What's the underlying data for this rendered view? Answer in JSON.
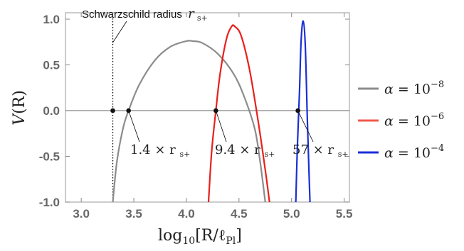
{
  "chart_data": {
    "type": "line",
    "xlabel": "log₁₀[R/ℓ_Pl]",
    "ylabel": "V(R)",
    "xlim": [
      2.85,
      5.55
    ],
    "ylim": [
      -1.0,
      1.07
    ],
    "xticks": [
      "3.0",
      "3.5",
      "4.0",
      "4.5",
      "5.0",
      "5.5"
    ],
    "xtick_values": [
      3.0,
      3.5,
      4.0,
      4.5,
      5.0,
      5.5
    ],
    "yticks": [
      "1.0",
      "0.5",
      "0.0",
      "-0.5",
      "-1.0"
    ],
    "ytick_values": [
      1.0,
      0.5,
      0.0,
      -0.5,
      -1.0
    ],
    "legend_position": "right",
    "series": [
      {
        "name": "α = 10⁻⁸",
        "color": "#8c8c8c",
        "x": [
          3.3,
          3.34,
          3.4,
          3.45,
          3.55,
          3.7,
          3.85,
          4.0,
          4.06,
          4.15,
          4.3,
          4.45,
          4.55,
          4.65,
          4.7,
          4.75
        ],
        "y": [
          -1.0,
          -0.55,
          -0.18,
          0.0,
          0.28,
          0.55,
          0.7,
          0.76,
          0.76,
          0.74,
          0.62,
          0.4,
          0.15,
          -0.2,
          -0.55,
          -1.0
        ]
      },
      {
        "name": "α = 10⁻⁶",
        "color": "#e8201c",
        "x": [
          4.21,
          4.24,
          4.28,
          4.32,
          4.38,
          4.43,
          4.46,
          4.52,
          4.6,
          4.68,
          4.75,
          4.79
        ],
        "y": [
          -1.0,
          -0.45,
          0.0,
          0.4,
          0.78,
          0.92,
          0.92,
          0.82,
          0.45,
          -0.1,
          -0.65,
          -1.0
        ]
      },
      {
        "name": "α = 10⁻⁴",
        "color": "#1a2fd6",
        "x": [
          5.04,
          5.055,
          5.075,
          5.09,
          5.11,
          5.13,
          5.15,
          5.165,
          5.175
        ],
        "y": [
          -1.0,
          -0.4,
          0.2,
          0.75,
          0.98,
          0.72,
          -0.1,
          -0.65,
          -1.0
        ]
      }
    ],
    "markers": [
      {
        "x": 3.3,
        "y": 0.0
      },
      {
        "x": 3.45,
        "y": 0.0
      },
      {
        "x": 4.28,
        "y": 0.0
      },
      {
        "x": 5.06,
        "y": 0.0
      }
    ],
    "vertical_line": {
      "x": 3.3,
      "style": "dotted"
    },
    "annotations": {
      "schwarzschild": {
        "text": "Schwarzschild radius",
        "symbol": "r",
        "subscript": "s+"
      },
      "a1": {
        "text": "1.4 × r",
        "subscript": "s+",
        "x": 3.45,
        "y": 0.0
      },
      "a2": {
        "text": "9.4 × r",
        "subscript": "s+",
        "x": 4.28,
        "y": 0.0
      },
      "a3": {
        "text": "57 × r",
        "subscript": "s+",
        "x": 5.06,
        "y": 0.0
      }
    }
  },
  "legend": [
    {
      "label": "α = 10",
      "exponent": "−8",
      "color": "#8c8c8c"
    },
    {
      "label": "α = 10",
      "exponent": "−6",
      "color": "#f05a4c"
    },
    {
      "label": "α = 10",
      "exponent": "−4",
      "color": "#1a2fd6"
    }
  ],
  "axis_titles": {
    "y_main": "V",
    "y_paren": "(R)",
    "x_log": "log",
    "x_sub": "10",
    "x_rest": "[R/ℓ",
    "x_sub2": "Pl",
    "x_close": "]"
  }
}
